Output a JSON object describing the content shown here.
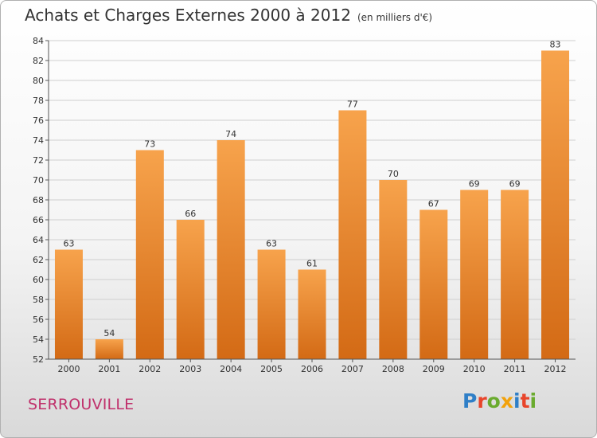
{
  "header": {
    "title": "Achats et Charges Externes 2000 à 2012",
    "unit": "(en milliers d'€)"
  },
  "place_label": "SERROUVILLE",
  "brand": {
    "name": "Proxiti",
    "letter_colors": [
      "#2f7fc7",
      "#e8452b",
      "#6aab2e",
      "#f2a20c",
      "#2f7fc7",
      "#e8452b",
      "#6aab2e"
    ]
  },
  "colors": {
    "bar_light": "#f7a34c",
    "bar_dark": "#d36a15",
    "grid": "#cfcfcf",
    "axis": "#555555"
  },
  "chart_data": {
    "type": "bar",
    "categories": [
      "2000",
      "2001",
      "2002",
      "2003",
      "2004",
      "2005",
      "2006",
      "2007",
      "2008",
      "2009",
      "2010",
      "2011",
      "2012"
    ],
    "values": [
      63,
      54,
      73,
      66,
      74,
      63,
      61,
      77,
      70,
      67,
      69,
      69,
      83
    ],
    "ylim": [
      52,
      84
    ],
    "yticks": [
      52,
      54,
      56,
      58,
      60,
      62,
      64,
      66,
      68,
      70,
      72,
      74,
      76,
      78,
      80,
      82,
      84
    ],
    "grid": true,
    "data_labels": true
  }
}
